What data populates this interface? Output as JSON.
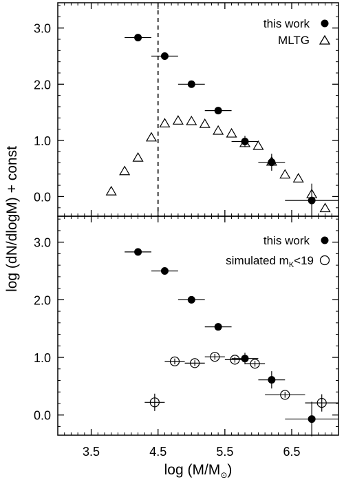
{
  "figure": {
    "ylabel": "log (dN/dlogM) + const",
    "xlabel": "log (M/M",
    "xlabel_sub": "⊙",
    "xlabel_close": ")"
  },
  "chart_data": [
    {
      "type": "scatter",
      "panel": "top",
      "xlim": [
        3.0,
        7.2
      ],
      "ylim": [
        -0.35,
        3.45
      ],
      "x_ticks": [
        3.5,
        4.5,
        5.5,
        6.5
      ],
      "y_ticks": [
        0.0,
        1.0,
        2.0,
        3.0
      ],
      "y_tick_labels": [
        "0.0",
        "1.0",
        "2.0",
        "3.0"
      ],
      "vline_x": 4.5,
      "legend_position": "top-right",
      "series": [
        {
          "name": "this work",
          "marker": "filled-circle",
          "points": [
            {
              "x": 4.2,
              "y": 2.83,
              "xerr": 0.2,
              "yerr": 0.0
            },
            {
              "x": 4.6,
              "y": 2.5,
              "xerr": 0.2,
              "yerr": 0.0
            },
            {
              "x": 5.0,
              "y": 2.0,
              "xerr": 0.2,
              "yerr": 0.0
            },
            {
              "x": 5.4,
              "y": 1.53,
              "xerr": 0.2,
              "yerr": 0.0
            },
            {
              "x": 5.8,
              "y": 0.98,
              "xerr": 0.2,
              "yerr": 0.1
            },
            {
              "x": 6.2,
              "y": 0.61,
              "xerr": 0.2,
              "yerr": 0.15
            },
            {
              "x": 6.8,
              "y": -0.07,
              "xerr": 0.4,
              "yerr": 0.3
            }
          ]
        },
        {
          "name": "MLTG",
          "marker": "open-triangle",
          "points": [
            {
              "x": 3.8,
              "y": 0.09
            },
            {
              "x": 4.0,
              "y": 0.45
            },
            {
              "x": 4.2,
              "y": 0.69
            },
            {
              "x": 4.4,
              "y": 1.05
            },
            {
              "x": 4.6,
              "y": 1.3
            },
            {
              "x": 4.8,
              "y": 1.35
            },
            {
              "x": 5.0,
              "y": 1.34
            },
            {
              "x": 5.2,
              "y": 1.29
            },
            {
              "x": 5.4,
              "y": 1.17
            },
            {
              "x": 5.6,
              "y": 1.12
            },
            {
              "x": 5.8,
              "y": 0.95
            },
            {
              "x": 6.0,
              "y": 0.9
            },
            {
              "x": 6.2,
              "y": 0.62
            },
            {
              "x": 6.4,
              "y": 0.39
            },
            {
              "x": 6.6,
              "y": 0.32
            },
            {
              "x": 6.8,
              "y": 0.04
            },
            {
              "x": 7.0,
              "y": -0.21
            }
          ]
        }
      ]
    },
    {
      "type": "scatter",
      "panel": "bottom",
      "xlim": [
        3.0,
        7.2
      ],
      "ylim": [
        -0.35,
        3.45
      ],
      "x_ticks": [
        3.5,
        4.5,
        5.5,
        6.5
      ],
      "x_tick_labels": [
        "3.5",
        "4.5",
        "5.5",
        "6.5"
      ],
      "y_ticks": [
        0.0,
        1.0,
        2.0,
        3.0
      ],
      "y_tick_labels": [
        "0.0",
        "1.0",
        "2.0",
        "3.0"
      ],
      "legend_position": "top-right",
      "series": [
        {
          "name": "this work",
          "marker": "filled-circle",
          "points": [
            {
              "x": 4.2,
              "y": 2.83,
              "xerr": 0.2,
              "yerr": 0.0
            },
            {
              "x": 4.6,
              "y": 2.5,
              "xerr": 0.2,
              "yerr": 0.0
            },
            {
              "x": 5.0,
              "y": 2.0,
              "xerr": 0.2,
              "yerr": 0.0
            },
            {
              "x": 5.4,
              "y": 1.53,
              "xerr": 0.2,
              "yerr": 0.0
            },
            {
              "x": 5.8,
              "y": 0.98,
              "xerr": 0.2,
              "yerr": 0.1
            },
            {
              "x": 6.2,
              "y": 0.61,
              "xerr": 0.2,
              "yerr": 0.15
            },
            {
              "x": 6.8,
              "y": -0.07,
              "xerr": 0.4,
              "yerr": 0.3
            }
          ]
        },
        {
          "name": "simulated m",
          "name_sub": "K",
          "name_suffix": "<19",
          "marker": "open-circle",
          "points": [
            {
              "x": 4.45,
              "y": 0.22,
              "xerr": 0.15,
              "yerr": 0.15
            },
            {
              "x": 4.75,
              "y": 0.93,
              "xerr": 0.15,
              "yerr": 0.05
            },
            {
              "x": 5.05,
              "y": 0.9,
              "xerr": 0.15,
              "yerr": 0.05
            },
            {
              "x": 5.35,
              "y": 1.01,
              "xerr": 0.15,
              "yerr": 0.05
            },
            {
              "x": 5.65,
              "y": 0.96,
              "xerr": 0.15,
              "yerr": 0.05
            },
            {
              "x": 5.95,
              "y": 0.89,
              "xerr": 0.15,
              "yerr": 0.05
            },
            {
              "x": 6.4,
              "y": 0.35,
              "xerr": 0.3,
              "yerr": 0.05
            },
            {
              "x": 6.95,
              "y": 0.21,
              "xerr": 0.25,
              "yerr": 0.15
            }
          ]
        }
      ]
    }
  ]
}
